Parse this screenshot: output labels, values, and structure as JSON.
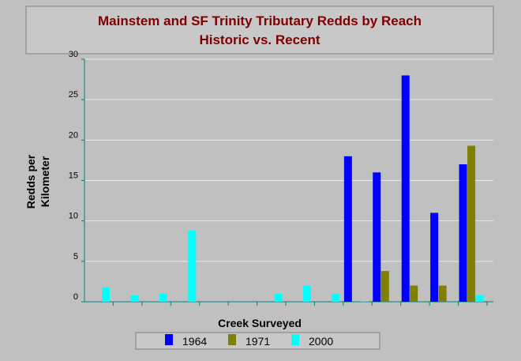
{
  "chart_data": {
    "type": "bar",
    "title": [
      "Mainstem and SF Trinity Tributary Redds by Reach",
      "Historic vs. Recent"
    ],
    "x_label": "Creek Surveyed",
    "y_label": [
      "Redds per",
      "Kilometer"
    ],
    "categories": [
      null,
      null,
      null,
      null,
      null,
      null,
      null,
      null,
      null,
      null,
      null,
      null,
      null,
      null
    ],
    "series": [
      {
        "name": "1964",
        "color": "#0000ff",
        "values": [
          null,
          null,
          null,
          null,
          null,
          null,
          null,
          null,
          null,
          18,
          16,
          28,
          11,
          17
        ]
      },
      {
        "name": "1971",
        "color": "#808000",
        "values": [
          null,
          null,
          null,
          null,
          null,
          null,
          null,
          null,
          null,
          null,
          3.8,
          2.0,
          2.0,
          19.3
        ]
      },
      {
        "name": "2000",
        "color": "#00ffff",
        "values": [
          1.8,
          0.8,
          1.0,
          8.8,
          null,
          null,
          1.0,
          2.0,
          1.0,
          0.1,
          null,
          null,
          null,
          0.8
        ]
      }
    ],
    "ylim": [
      0,
      30
    ],
    "yticks": [
      0,
      5,
      10,
      15,
      20,
      25,
      30
    ],
    "grid": true,
    "legend": "bottom"
  }
}
